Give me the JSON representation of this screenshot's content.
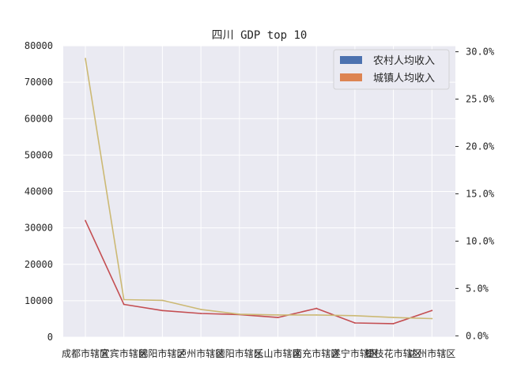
{
  "chart_data": {
    "type": "line",
    "title": "四川 GDP top 10",
    "categories": [
      "成都市辖区",
      "宜宾市辖区",
      "绵阳市辖区",
      "泸州市辖区",
      "德阳市辖区",
      "乐山市辖区",
      "南充市辖区",
      "遂宁市辖区",
      "攀枝花市辖区",
      "达州市辖区"
    ],
    "series": [
      {
        "name": "农村人均收入",
        "axis": "left",
        "color": "#c44e52",
        "values": [
          32000,
          9000,
          7300,
          6500,
          6200,
          5400,
          7900,
          3900,
          3700,
          7300
        ]
      },
      {
        "name": "城镇人均收入",
        "axis": "left",
        "color": "#ccb974",
        "values": [
          76500,
          10300,
          10100,
          7600,
          6300,
          6100,
          6100,
          5900,
          5400,
          5100
        ]
      }
    ],
    "legend": [
      {
        "name": "农村人均收入",
        "color": "#4c72b0"
      },
      {
        "name": "城镇人均收入",
        "color": "#dd8452"
      }
    ],
    "legend_position": "top-right",
    "y_left": {
      "ylim": [
        0,
        80000
      ],
      "ticks": [
        "0",
        "10000",
        "20000",
        "30000",
        "40000",
        "50000",
        "60000",
        "70000",
        "80000"
      ]
    },
    "y_right": {
      "ylim": [
        -0.0014,
        0.3063
      ],
      "ticks": [
        "0.0%",
        "5.0%",
        "10.0%",
        "15.0%",
        "20.0%",
        "25.0%",
        "30.0%"
      ],
      "tick_values": [
        0,
        0.05,
        0.1,
        0.15,
        0.2,
        0.25,
        0.3
      ]
    },
    "grid": true,
    "background": "#eaeaf2"
  }
}
